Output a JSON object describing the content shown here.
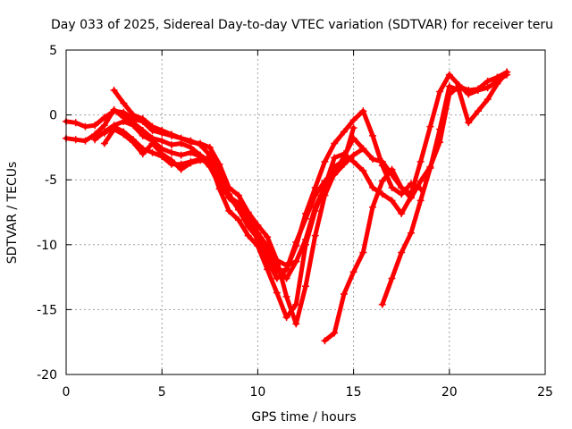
{
  "chart_data": {
    "type": "line",
    "title": "Day 033 of 2025, Sidereal Day-to-day VTEC variation (SDTVAR) for receiver teru",
    "xlabel": "GPS time / hours",
    "ylabel": "SDTVAR / TECUs",
    "xlim": [
      0,
      25
    ],
    "ylim": [
      -20,
      5
    ],
    "xticks": [
      0,
      5,
      10,
      15,
      20,
      25
    ],
    "yticks": [
      5,
      0,
      -5,
      -10,
      -15,
      -20
    ],
    "xtick_labels": [
      "0",
      "5",
      "10",
      "15",
      "20",
      "25"
    ],
    "ytick_labels": [
      "5",
      "0",
      "-5",
      "-10",
      "-15",
      "-20"
    ],
    "grid": true,
    "marker": "plus",
    "color": "#ff0000",
    "series": [
      {
        "x": [
          0,
          0.5,
          1.0,
          1.5,
          2.0,
          2.5,
          3.0,
          3.5,
          4.0,
          4.5,
          5.0,
          5.5,
          6.0,
          6.5,
          7.0,
          7.5,
          8.0,
          8.5,
          9.0,
          9.5,
          10.0,
          10.5,
          11.0,
          11.5,
          12.0
        ],
        "y": [
          -0.5,
          -0.6,
          -0.9,
          -0.8,
          -0.2,
          0.3,
          0.2,
          -0.3,
          -0.5,
          -1.2,
          -1.4,
          -1.6,
          -1.8,
          -2.1,
          -2.2,
          -2.5,
          -3.8,
          -5.6,
          -6.2,
          -7.5,
          -8.5,
          -9.4,
          -11.2,
          -11.6,
          -11.3
        ]
      },
      {
        "x": [
          0,
          0.5,
          1.0,
          1.5,
          2.0,
          2.5,
          3.0,
          3.5,
          4.0,
          4.5,
          5.0,
          5.5,
          6.0,
          6.5,
          7.0,
          7.5,
          8.0,
          8.5,
          9.0,
          9.5,
          10.0,
          10.5,
          11.0,
          11.5,
          12.0,
          12.5,
          13.0,
          13.5,
          14.0,
          14.5,
          15.0,
          15.5
        ],
        "y": [
          -1.8,
          -1.9,
          -2.0,
          -1.5,
          -0.8,
          0.4,
          -0.2,
          -0.6,
          -1.2,
          -1.8,
          -2.0,
          -2.3,
          -2.2,
          -2.5,
          -3.1,
          -3.6,
          -4.6,
          -6.4,
          -7.1,
          -8.2,
          -9.2,
          -10.5,
          -12.1,
          -11.9,
          -9.8,
          -8.0,
          -6.2,
          -5.1,
          -4.6,
          -3.8,
          -3.1,
          -2.6
        ]
      },
      {
        "x": [
          2.5,
          3.0,
          3.5,
          4.0,
          4.5,
          5.0,
          5.5,
          6.0,
          6.5,
          7.0,
          7.5,
          8.0,
          8.5,
          9.0,
          9.5,
          10.0,
          10.5,
          11.0,
          11.5,
          12.0,
          12.5,
          13.0,
          13.5,
          14.0,
          14.5,
          15.0,
          15.5,
          16.0,
          16.5,
          17.0,
          17.5,
          18.0,
          18.5
        ],
        "y": [
          1.9,
          0.9,
          0.0,
          -0.3,
          -0.9,
          -1.2,
          -1.5,
          -1.8,
          -2.0,
          -2.3,
          -3.1,
          -4.3,
          -6.2,
          -7.3,
          -8.6,
          -9.5,
          -11.2,
          -12.6,
          -11.9,
          -10.1,
          -7.6,
          -5.6,
          -3.6,
          -2.2,
          -1.3,
          -0.4,
          0.3,
          -1.6,
          -3.9,
          -5.6,
          -6.1,
          -5.3,
          -5.7
        ]
      },
      {
        "x": [
          1.5,
          2.0,
          2.5,
          3.0,
          3.5,
          4.0,
          4.5,
          5.0,
          5.5,
          6.0,
          6.5,
          7.0,
          7.5,
          8.0,
          8.5,
          9.0,
          9.5,
          10.0,
          10.5,
          11.0,
          11.5,
          12.0,
          12.5,
          13.0,
          13.5,
          14.0,
          14.5,
          15.0
        ],
        "y": [
          -1.9,
          -1.3,
          -0.8,
          -0.5,
          -0.8,
          -1.6,
          -2.0,
          -2.6,
          -2.9,
          -3.1,
          -2.9,
          -3.2,
          -4.0,
          -5.4,
          -6.3,
          -6.8,
          -7.6,
          -9.1,
          -10.1,
          -11.6,
          -12.6,
          -11.3,
          -9.6,
          -7.1,
          -5.6,
          -4.0,
          -3.5,
          -1.0
        ]
      },
      {
        "x": [
          2.0,
          2.5,
          3.0,
          3.5,
          4.0,
          4.5,
          5.0,
          5.5,
          6.0,
          6.5,
          7.0,
          7.5,
          8.0,
          8.5,
          9.0,
          9.5,
          10.0,
          10.5,
          11.0,
          11.5,
          12.0,
          12.5,
          13.0,
          13.5,
          14.0,
          14.5,
          15.0,
          15.5,
          16.0,
          16.5,
          17.0,
          17.5,
          18.0
        ],
        "y": [
          -2.2,
          -1.1,
          -1.5,
          -2.1,
          -3.0,
          -2.2,
          -3.0,
          -3.5,
          -4.2,
          -3.7,
          -3.5,
          -3.6,
          -5.7,
          -7.4,
          -8.1,
          -9.3,
          -10.1,
          -11.9,
          -13.7,
          -15.6,
          -14.6,
          -10.0,
          -7.4,
          -5.5,
          -3.3,
          -3.0,
          -3.6,
          -4.3,
          -5.6,
          -6.1,
          -6.6,
          -7.6,
          -6.3
        ]
      },
      {
        "x": [
          2.0,
          2.5,
          3.0,
          3.5,
          4.0,
          4.5,
          5.0,
          5.5,
          6.0,
          6.5,
          7.0,
          7.5,
          8.0,
          8.5,
          9.0,
          9.5,
          10.0,
          10.5,
          11.0,
          11.5,
          12.0,
          12.5,
          13.0,
          13.5,
          14.0,
          14.5,
          15.0,
          15.5,
          16.0,
          16.5,
          17.0,
          17.5,
          18.0,
          18.5,
          19.0,
          19.5,
          20.0,
          20.5,
          21.0,
          21.5,
          22.0,
          22.5,
          23.0
        ],
        "y": [
          -1.4,
          -0.9,
          -1.3,
          -1.9,
          -2.6,
          -2.9,
          -3.2,
          -3.8,
          -3.8,
          -3.6,
          -3.4,
          -3.3,
          -4.8,
          -6.1,
          -7.3,
          -8.3,
          -9.6,
          -10.6,
          -11.2,
          -14.0,
          -16.1,
          -13.2,
          -9.3,
          -6.2,
          -4.5,
          -3.2,
          -1.8,
          -2.6,
          -3.4,
          -3.6,
          -4.6,
          -5.6,
          -6.1,
          -3.6,
          -0.9,
          1.8,
          3.1,
          2.3,
          1.6,
          1.9,
          2.1,
          2.6,
          3.1
        ]
      },
      {
        "x": [
          13.5,
          14.0,
          14.5,
          15.0,
          15.5,
          16.0,
          16.5,
          17.0,
          17.5,
          18.0,
          18.5,
          19.0,
          19.5,
          20.0,
          20.5,
          21.0,
          21.5,
          22.0,
          22.5,
          23.0
        ],
        "y": [
          -17.4,
          -16.8,
          -13.8,
          -12.1,
          -10.6,
          -7.1,
          -5.1,
          -4.2,
          -5.6,
          -6.4,
          -5.1,
          -4.0,
          -2.1,
          1.6,
          2.2,
          1.9,
          2.0,
          2.6,
          2.9,
          3.3
        ]
      },
      {
        "x": [
          16.5,
          17.0,
          17.5,
          18.0,
          18.5,
          19.0,
          19.5,
          20.0,
          20.5,
          21.0,
          21.5,
          22.0,
          22.5,
          23.0
        ],
        "y": [
          -14.6,
          -12.6,
          -10.6,
          -9.1,
          -6.6,
          -4.1,
          -1.1,
          2.2,
          1.9,
          -0.6,
          0.3,
          1.2,
          2.4,
          3.3
        ]
      }
    ]
  }
}
